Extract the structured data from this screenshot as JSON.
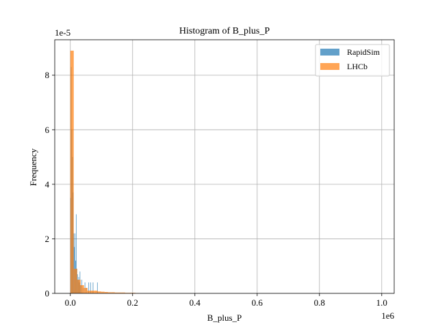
{
  "chart_data": {
    "type": "bar",
    "title": "Histogram of B_plus_P",
    "xlabel": "B_plus_P",
    "ylabel": "Frequency",
    "x_offset_label": "1e6",
    "y_offset_label": "1e-5",
    "xlim": [
      -0.05,
      1.04
    ],
    "ylim": [
      0,
      9.3
    ],
    "x_ticks": [
      0.0,
      0.2,
      0.4,
      0.6,
      0.8,
      1.0
    ],
    "x_tick_labels": [
      "0.0",
      "0.2",
      "0.4",
      "0.6",
      "0.8",
      "1.0"
    ],
    "y_ticks": [
      0,
      2,
      4,
      6,
      8
    ],
    "y_tick_labels": [
      "0",
      "2",
      "4",
      "6",
      "8"
    ],
    "grid": true,
    "legend_position": "top-right",
    "series": [
      {
        "name": "RapidSim",
        "color": "#1f77b4",
        "opacity": 0.7,
        "bins": [
          [
            0.0,
            0.002,
            3.5
          ],
          [
            0.002,
            0.004,
            8.3
          ],
          [
            0.004,
            0.006,
            6.0
          ],
          [
            0.006,
            0.008,
            5.0
          ],
          [
            0.008,
            0.01,
            3.7
          ],
          [
            0.01,
            0.012,
            2.2
          ],
          [
            0.012,
            0.014,
            1.7
          ],
          [
            0.014,
            0.016,
            2.2
          ],
          [
            0.016,
            0.018,
            1.2
          ],
          [
            0.018,
            0.02,
            2.9
          ],
          [
            0.02,
            0.022,
            0.9
          ],
          [
            0.022,
            0.024,
            0.7
          ],
          [
            0.024,
            0.026,
            0.5
          ],
          [
            0.026,
            0.028,
            0.6
          ],
          [
            0.028,
            0.03,
            0.4
          ],
          [
            0.03,
            0.032,
            0.8
          ],
          [
            0.032,
            0.034,
            0.3
          ],
          [
            0.036,
            0.038,
            0.5
          ],
          [
            0.04,
            0.042,
            0.2
          ],
          [
            0.046,
            0.048,
            0.4
          ],
          [
            0.052,
            0.054,
            0.2
          ],
          [
            0.058,
            0.06,
            0.4
          ],
          [
            0.064,
            0.066,
            0.4
          ],
          [
            0.072,
            0.074,
            0.4
          ],
          [
            0.086,
            0.088,
            0.4
          ]
        ]
      },
      {
        "name": "LHCb",
        "color": "#ff7f0e",
        "opacity": 0.7,
        "bins": [
          [
            0.0,
            0.011,
            8.9
          ],
          [
            0.011,
            0.022,
            0.9
          ],
          [
            0.022,
            0.033,
            0.5
          ],
          [
            0.033,
            0.044,
            0.3
          ],
          [
            0.044,
            0.055,
            0.2
          ],
          [
            0.055,
            0.066,
            0.1
          ],
          [
            0.066,
            0.077,
            0.1
          ],
          [
            0.077,
            0.088,
            0.1
          ],
          [
            0.088,
            0.099,
            0.07
          ],
          [
            0.099,
            0.11,
            0.06
          ],
          [
            0.11,
            0.121,
            0.05
          ],
          [
            0.121,
            0.132,
            0.04
          ],
          [
            0.132,
            0.143,
            0.04
          ],
          [
            0.143,
            0.154,
            0.03
          ],
          [
            0.154,
            0.165,
            0.03
          ],
          [
            0.165,
            0.176,
            0.03
          ],
          [
            0.176,
            0.187,
            0.02
          ],
          [
            0.187,
            0.198,
            0.02
          ],
          [
            0.198,
            0.209,
            0.02
          ],
          [
            0.209,
            0.22,
            0.01
          ]
        ]
      }
    ]
  }
}
